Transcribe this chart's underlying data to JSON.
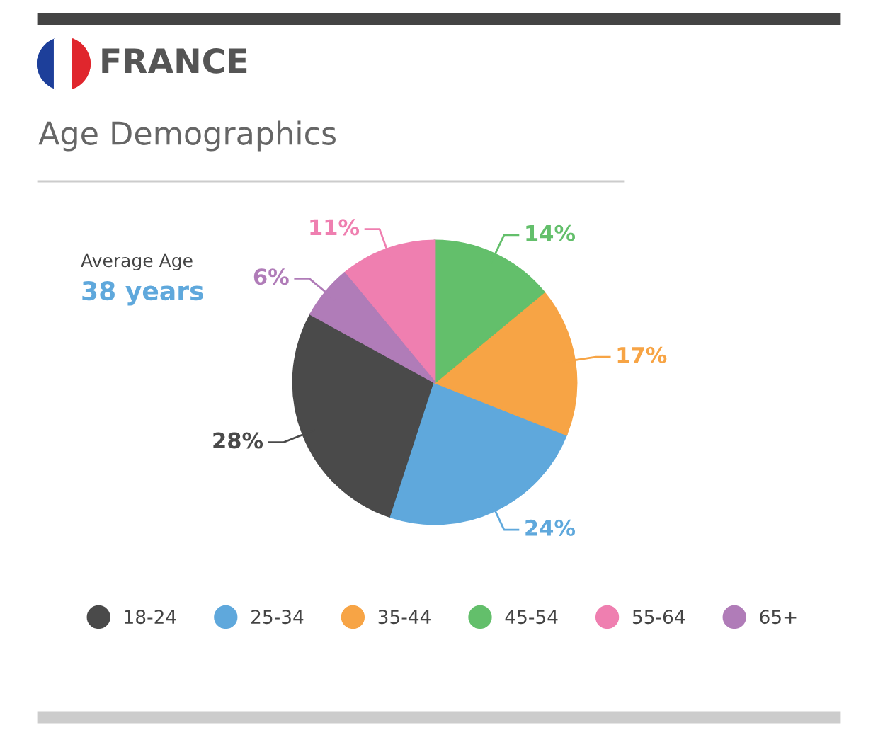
{
  "chart_data": {
    "type": "pie",
    "title": "FRANCE",
    "subtitle": "Age Demographics",
    "categories": [
      "18-24",
      "25-34",
      "35-44",
      "45-54",
      "55-64",
      "65+"
    ],
    "values": [
      28,
      24,
      17,
      14,
      11,
      6
    ],
    "colors": [
      "#4a4a4a",
      "#5fa8dc",
      "#f7a445",
      "#63bf6b",
      "#ef7fb0",
      "#b07cb8"
    ],
    "value_labels": [
      "28%",
      "24%",
      "17%",
      "14%",
      "11%",
      "6%"
    ],
    "annotations": [
      "Average Age",
      "38 years"
    ],
    "legend": "bottom"
  }
}
